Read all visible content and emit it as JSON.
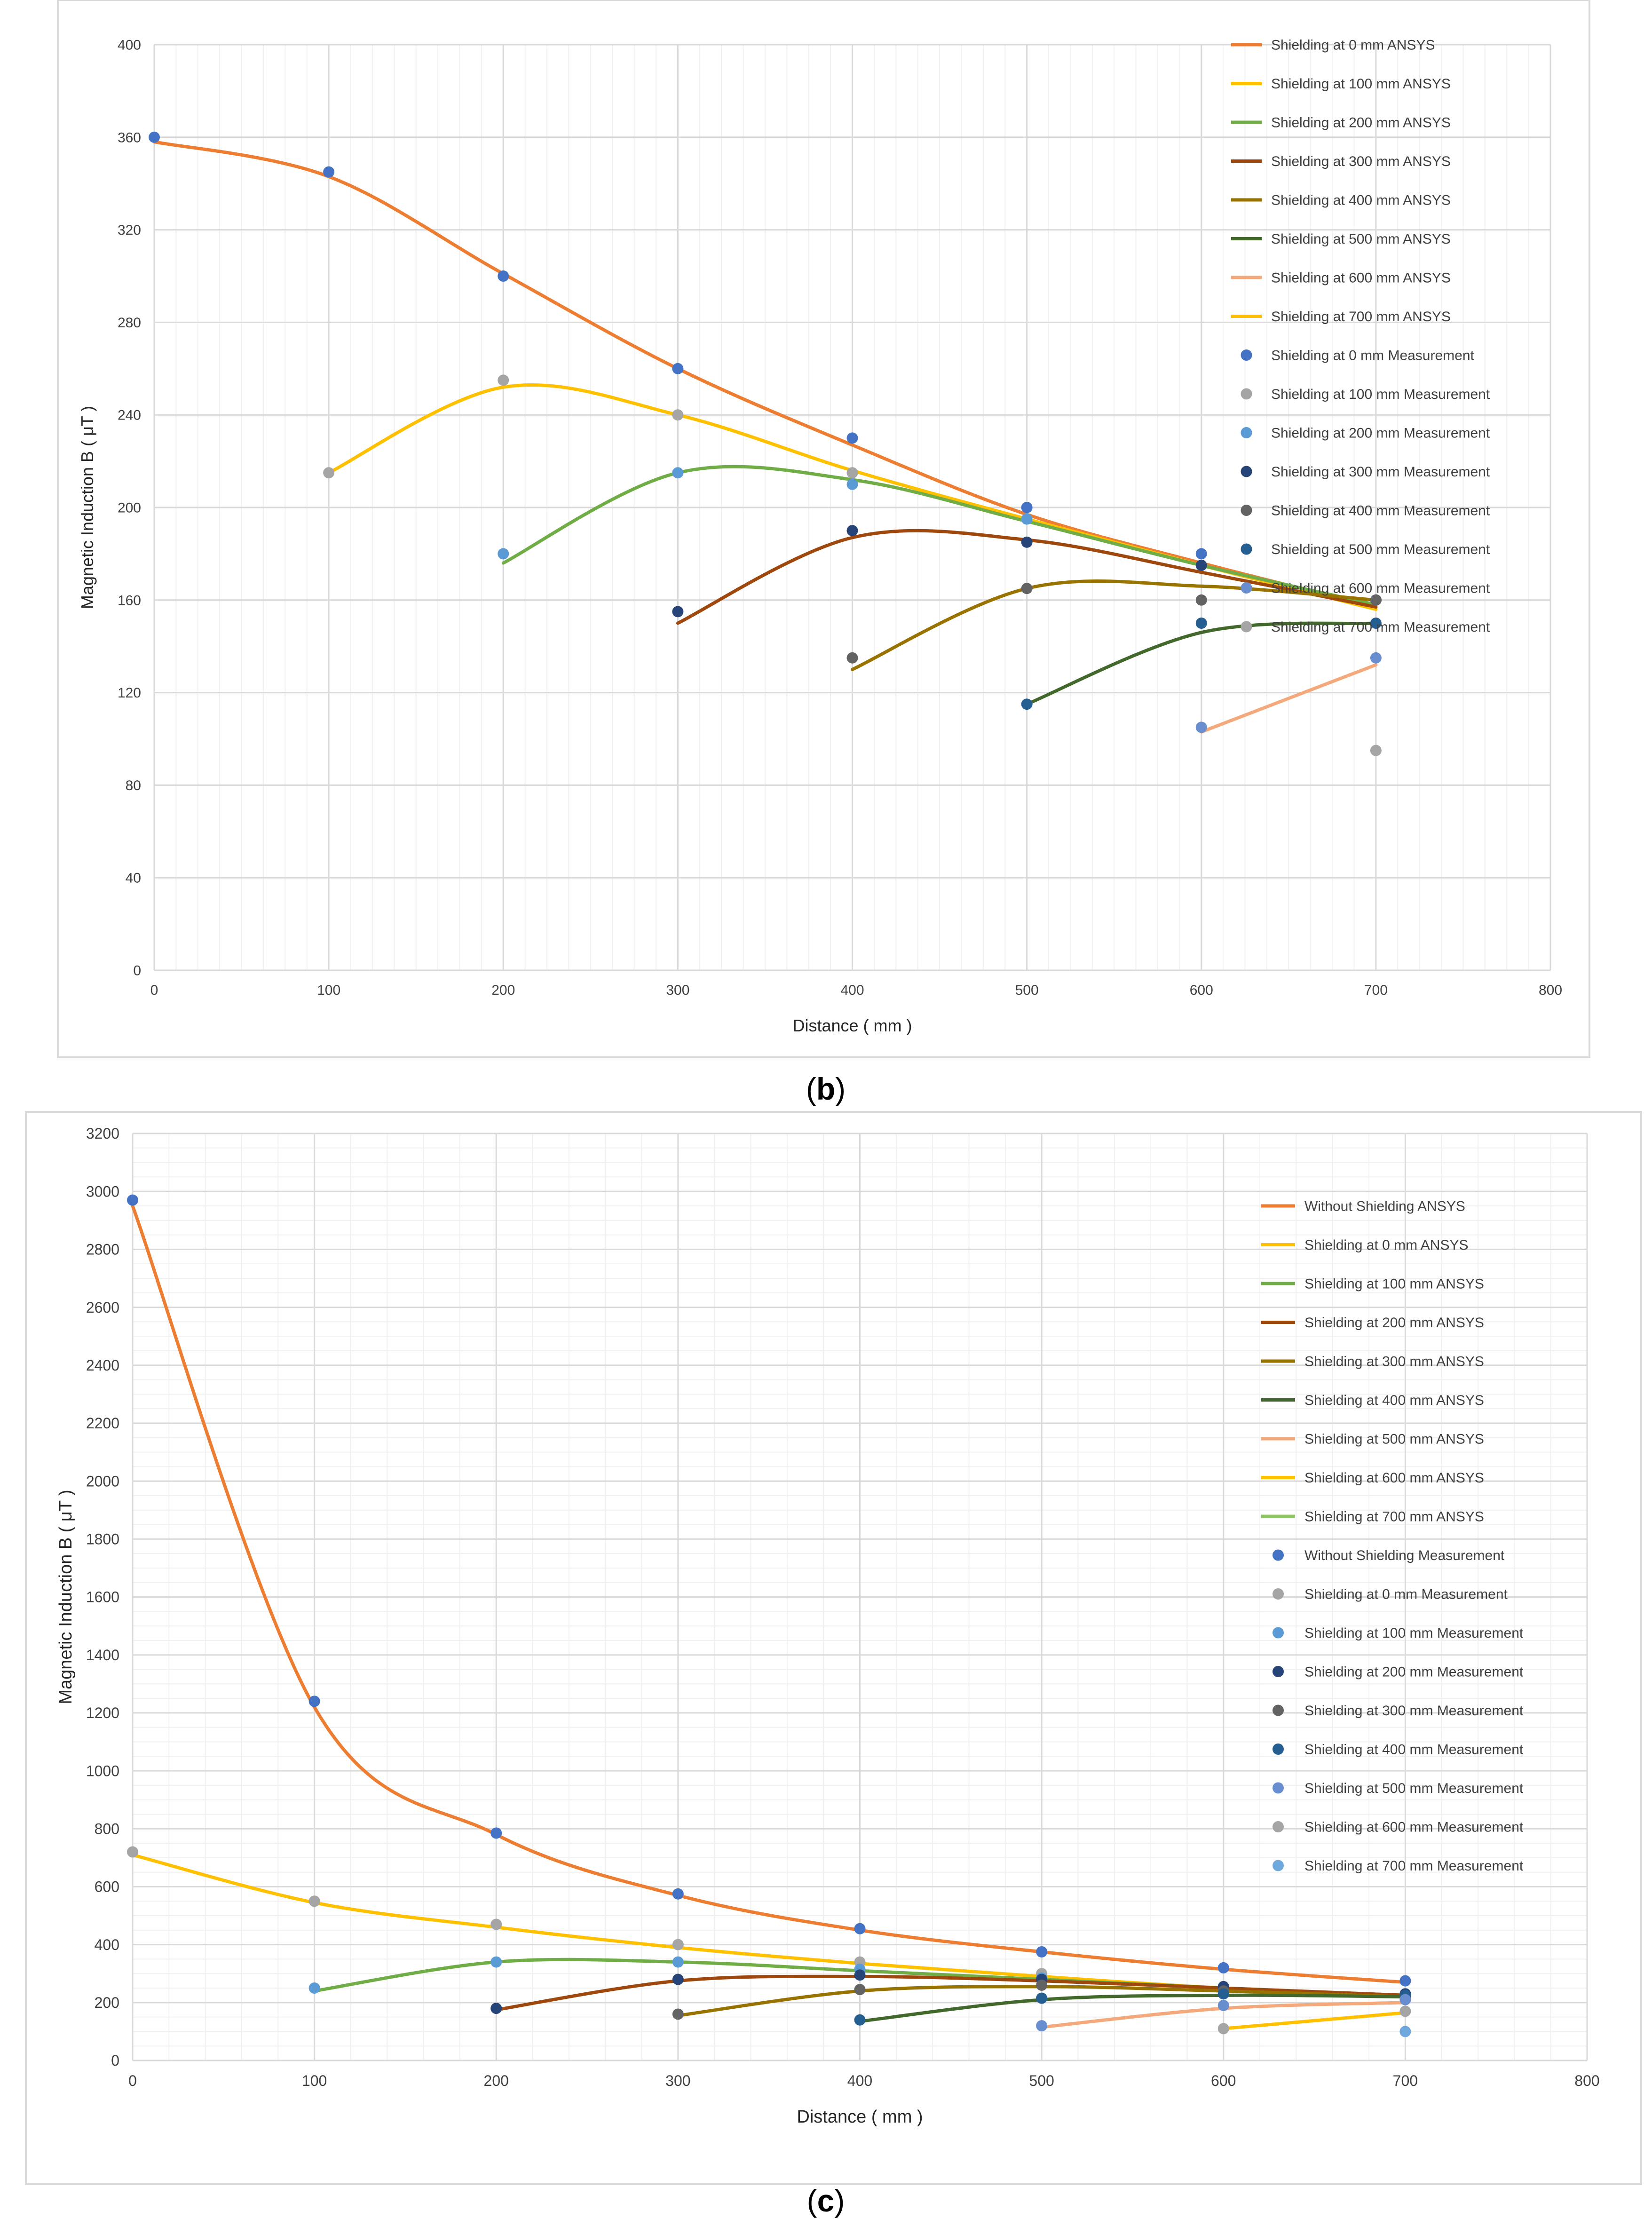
{
  "chart_data": [
    {
      "type": "line",
      "panel_label": "b",
      "xlabel": "Distance ( mm )",
      "ylabel": "Magnetic Induction B ( μT )",
      "xlim": [
        0,
        800
      ],
      "ylim": [
        0,
        400
      ],
      "x_ticks": [
        0,
        100,
        200,
        300,
        400,
        500,
        600,
        700,
        800
      ],
      "y_ticks": [
        0,
        40,
        80,
        120,
        160,
        200,
        240,
        280,
        320,
        360,
        400
      ],
      "grid": true,
      "legend_position": "top-right",
      "ansys_series": [
        {
          "name": "Shielding at 0 mm ANSYS",
          "color": "#ED7D31",
          "x": [
            0,
            100,
            200,
            300,
            400,
            500,
            600,
            700
          ],
          "y": [
            358,
            343,
            301,
            260,
            227,
            197,
            176,
            157
          ]
        },
        {
          "name": "Shielding at 100 mm ANSYS",
          "color": "#FFC000",
          "x": [
            100,
            200,
            300,
            400,
            500,
            600,
            700
          ],
          "y": [
            215,
            252,
            240,
            216,
            195,
            175,
            156
          ]
        },
        {
          "name": "Shielding at 200 mm ANSYS",
          "color": "#70AD47",
          "x": [
            200,
            300,
            400,
            500,
            600,
            700
          ],
          "y": [
            176,
            215,
            212,
            194,
            175,
            158
          ]
        },
        {
          "name": "Shielding at 300 mm ANSYS",
          "color": "#9E480E",
          "x": [
            300,
            400,
            500,
            600,
            700
          ],
          "y": [
            150,
            187,
            186,
            172,
            157
          ]
        },
        {
          "name": "Shielding at 400 mm ANSYS",
          "color": "#997300",
          "x": [
            400,
            500,
            600,
            700
          ],
          "y": [
            130,
            165,
            166,
            160
          ]
        },
        {
          "name": "Shielding at 500 mm ANSYS",
          "color": "#43682B",
          "x": [
            500,
            600,
            700
          ],
          "y": [
            115,
            146,
            150
          ]
        },
        {
          "name": "Shielding at 600 mm ANSYS",
          "color": "#F4A97D",
          "x": [
            600,
            700
          ],
          "y": [
            103,
            132
          ]
        },
        {
          "name": "Shielding at 700 mm ANSYS",
          "color": "#FFC000",
          "x": [],
          "y": []
        }
      ],
      "measurement_series": [
        {
          "name": "Shielding at 0 mm Measurement",
          "color": "#4472C4",
          "x": [
            0,
            100,
            200,
            300,
            400,
            500,
            600,
            700
          ],
          "y": [
            360,
            345,
            300,
            260,
            230,
            200,
            180,
            160
          ]
        },
        {
          "name": "Shielding at 100 mm Measurement",
          "color": "#A5A5A5",
          "x": [
            100,
            200,
            300,
            400,
            500,
            600,
            700
          ],
          "y": [
            215,
            255,
            240,
            215,
            195,
            175,
            160
          ]
        },
        {
          "name": "Shielding at 200 mm Measurement",
          "color": "#5B9BD5",
          "x": [
            200,
            300,
            400,
            500,
            600,
            700
          ],
          "y": [
            180,
            215,
            210,
            195,
            175,
            160
          ]
        },
        {
          "name": "Shielding at 300 mm Measurement",
          "color": "#264478",
          "x": [
            300,
            400,
            500,
            600,
            700
          ],
          "y": [
            155,
            190,
            185,
            175,
            160
          ]
        },
        {
          "name": "Shielding at 400 mm Measurement",
          "color": "#636363",
          "x": [
            400,
            500,
            600,
            700
          ],
          "y": [
            135,
            165,
            160,
            160
          ]
        },
        {
          "name": "Shielding at 500 mm Measurement",
          "color": "#255E91",
          "x": [
            500,
            600,
            700
          ],
          "y": [
            115,
            150,
            150
          ]
        },
        {
          "name": "Shielding at 600 mm Measurement",
          "color": "#698ED0",
          "x": [
            600,
            700
          ],
          "y": [
            105,
            135
          ]
        },
        {
          "name": "Shielding at 700 mm Measurement",
          "color": "#A5A5A5",
          "x": [
            700
          ],
          "y": [
            95
          ]
        }
      ]
    },
    {
      "type": "line",
      "panel_label": "c",
      "xlabel": "Distance ( mm )",
      "ylabel": "Magnetic Induction B ( μT )",
      "xlim": [
        0,
        800
      ],
      "ylim": [
        0,
        3200
      ],
      "x_ticks": [
        0,
        100,
        200,
        300,
        400,
        500,
        600,
        700,
        800
      ],
      "y_ticks": [
        0,
        200,
        400,
        600,
        800,
        1000,
        1200,
        1400,
        1600,
        1800,
        2000,
        2200,
        2400,
        2600,
        2800,
        3000,
        3200
      ],
      "grid": true,
      "legend_position": "right",
      "ansys_series": [
        {
          "name": "Without Shielding ANSYS",
          "color": "#ED7D31",
          "x": [
            0,
            100,
            200,
            300,
            400,
            500,
            600,
            700
          ],
          "y": [
            2950,
            1220,
            780,
            570,
            450,
            375,
            315,
            270
          ]
        },
        {
          "name": "Shielding at 0 mm ANSYS",
          "color": "#FFC000",
          "x": [
            0,
            100,
            200,
            300,
            400,
            500,
            600,
            700
          ],
          "y": [
            710,
            545,
            460,
            390,
            335,
            290,
            250,
            225
          ]
        },
        {
          "name": "Shielding at 100 mm ANSYS",
          "color": "#70AD47",
          "x": [
            100,
            200,
            300,
            400,
            500,
            600,
            700
          ],
          "y": [
            240,
            340,
            340,
            310,
            280,
            250,
            225
          ]
        },
        {
          "name": "Shielding at 200 mm ANSYS",
          "color": "#9E480E",
          "x": [
            200,
            300,
            400,
            500,
            600,
            700
          ],
          "y": [
            175,
            275,
            290,
            275,
            250,
            225
          ]
        },
        {
          "name": "Shielding at 300 mm ANSYS",
          "color": "#997300",
          "x": [
            300,
            400,
            500,
            600,
            700
          ],
          "y": [
            155,
            240,
            255,
            240,
            220
          ]
        },
        {
          "name": "Shielding at 400 mm ANSYS",
          "color": "#43682B",
          "x": [
            400,
            500,
            600,
            700
          ],
          "y": [
            135,
            210,
            225,
            220
          ]
        },
        {
          "name": "Shielding at 500 mm ANSYS",
          "color": "#F4A97D",
          "x": [
            500,
            600,
            700
          ],
          "y": [
            115,
            180,
            200
          ]
        },
        {
          "name": "Shielding at 600 mm ANSYS",
          "color": "#FFC000",
          "x": [
            600,
            700
          ],
          "y": [
            110,
            165
          ]
        },
        {
          "name": "Shielding at 700 mm ANSYS",
          "color": "#8FC765",
          "x": [],
          "y": []
        }
      ],
      "measurement_series": [
        {
          "name": "Without Shielding Measurement",
          "color": "#4472C4",
          "x": [
            0,
            100,
            200,
            300,
            400,
            500,
            600,
            700
          ],
          "y": [
            2970,
            1240,
            785,
            575,
            455,
            375,
            320,
            275
          ]
        },
        {
          "name": "Shielding at 0 mm Measurement",
          "color": "#A5A5A5",
          "x": [
            0,
            100,
            200,
            300,
            400,
            500,
            600,
            700
          ],
          "y": [
            720,
            550,
            470,
            400,
            340,
            300,
            255,
            230
          ]
        },
        {
          "name": "Shielding at 100 mm Measurement",
          "color": "#5B9BD5",
          "x": [
            100,
            200,
            300,
            400,
            500,
            600,
            700
          ],
          "y": [
            250,
            340,
            340,
            315,
            285,
            255,
            230
          ]
        },
        {
          "name": "Shielding at 200 mm Measurement",
          "color": "#264478",
          "x": [
            200,
            300,
            400,
            500,
            600,
            700
          ],
          "y": [
            180,
            280,
            295,
            280,
            255,
            230
          ]
        },
        {
          "name": "Shielding at 300 mm Measurement",
          "color": "#636363",
          "x": [
            300,
            400,
            500,
            600,
            700
          ],
          "y": [
            160,
            245,
            260,
            240,
            220
          ]
        },
        {
          "name": "Shielding at 400 mm Measurement",
          "color": "#255E91",
          "x": [
            400,
            500,
            600,
            700
          ],
          "y": [
            140,
            215,
            230,
            225
          ]
        },
        {
          "name": "Shielding at 500 mm Measurement",
          "color": "#698ED0",
          "x": [
            500,
            600,
            700
          ],
          "y": [
            120,
            190,
            210
          ]
        },
        {
          "name": "Shielding at 600 mm Measurement",
          "color": "#A5A5A5",
          "x": [
            600,
            700
          ],
          "y": [
            110,
            170
          ]
        },
        {
          "name": "Shielding at 700 mm Measurement",
          "color": "#6FA8DC",
          "x": [
            700
          ],
          "y": [
            100
          ]
        }
      ]
    }
  ]
}
